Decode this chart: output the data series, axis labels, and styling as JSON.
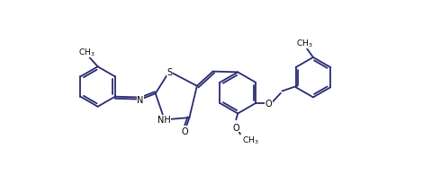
{
  "bg": "#ffffff",
  "lc": "#2a2a72",
  "lw": 1.3,
  "fs": 7.0,
  "fig_w": 4.9,
  "fig_h": 2.05,
  "dpi": 100,
  "xlim": [
    -0.3,
    9.5
  ],
  "ylim": [
    -1.5,
    3.8
  ]
}
